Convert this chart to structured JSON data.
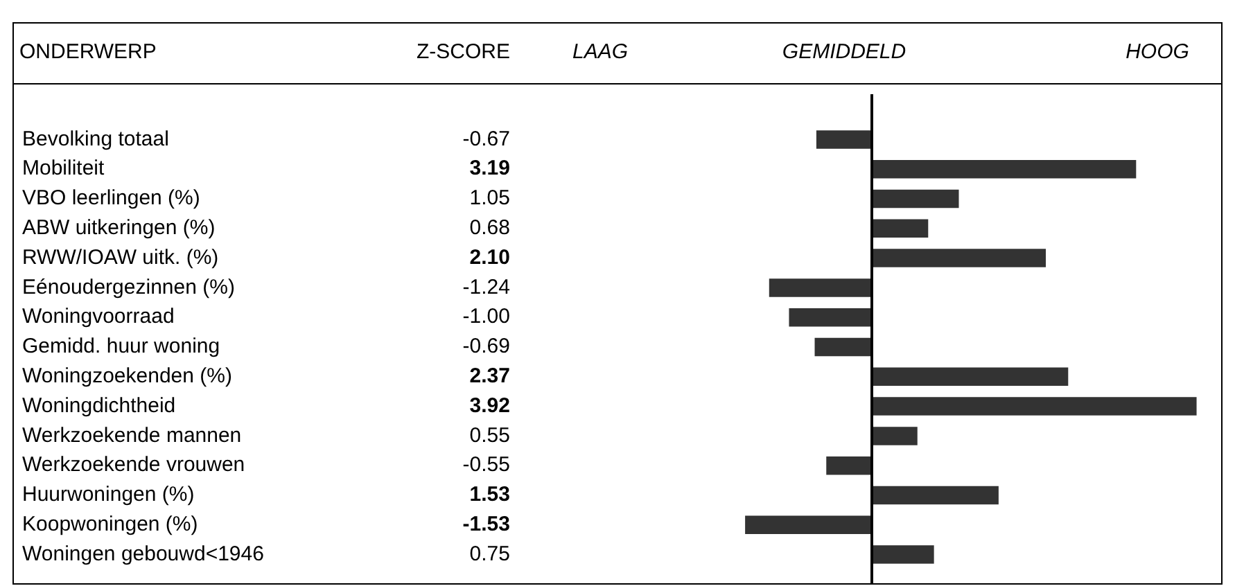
{
  "chart_data": {
    "type": "bar",
    "orientation": "horizontal",
    "ylabel": "ONDERWERP",
    "annotations": [
      "Z-SCORE",
      "LAAG",
      "GEMIDDELD",
      "HOOG"
    ],
    "categories": [
      "Bevolking totaal",
      "Mobiliteit",
      "VBO leerlingen (%)",
      "ABW uitkeringen (%)",
      "RWW/IOAW uitk. (%)",
      "Eénoudergezinnen (%)",
      "Woningvoorraad",
      "Gemidd. huur woning",
      "Woningzoekenden (%)",
      "Woningdichtheid",
      "Werkzoekende mannen",
      "Werkzoekende vrouwen",
      "Huurwoningen (%)",
      "Koopwoningen (%)",
      "Woningen gebouwd<1946"
    ],
    "values": [
      -0.67,
      3.19,
      1.05,
      0.68,
      2.1,
      -1.24,
      -1.0,
      -0.69,
      2.37,
      3.92,
      0.55,
      -0.55,
      1.53,
      -1.53,
      0.75
    ],
    "value_labels": [
      "-0.67",
      "3.19",
      "1.05",
      "0.68",
      "2.10",
      "-1.24",
      "-1.00",
      "-0.69",
      "2.37",
      "3.92",
      "0.55",
      "-0.55",
      "1.53",
      "-1.53",
      "0.75"
    ],
    "color": "#333333",
    "ref_lines": [
      {
        "axis": "x",
        "value": 0,
        "color": "#000000"
      }
    ],
    "legend": false
  }
}
